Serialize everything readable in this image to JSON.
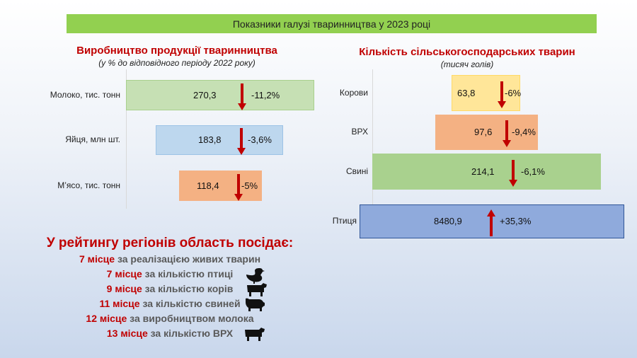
{
  "banner": "Показники галузі тваринництва у 2023 році",
  "chart_data": [
    {
      "type": "bar",
      "title": "Виробництво продукції тваринництва",
      "subtitle": "(у % до відповідного  періоду 2022 року)",
      "categories": [
        "Молоко, тис. тонн",
        "Яйця, млн шт.",
        "М’ясо, тис. тонн"
      ],
      "values": [
        270.3,
        183.8,
        118.4
      ],
      "value_labels": [
        "270,3",
        "183,8",
        "118,4"
      ],
      "changes": [
        "-11,2%",
        "-3,6%",
        "-5%"
      ],
      "colors": [
        "#c6e0b4",
        "#bdd7ee",
        "#f4b183"
      ]
    },
    {
      "type": "bar",
      "title": "Кількість сільськогосподарських тварин",
      "subtitle": "(тисяч голів)",
      "categories": [
        "Корови",
        "ВРХ",
        "Свині",
        "Птиця"
      ],
      "values": [
        63.8,
        97.6,
        214.1,
        8480.9
      ],
      "value_labels": [
        "63,8",
        "97,6",
        "214,1",
        "8480,9"
      ],
      "changes": [
        "-6%",
        "-9,4%",
        "-6,1%",
        "+35,3%"
      ],
      "colors": [
        "#ffe699",
        "#f4b183",
        "#a9d18e",
        "#8faadc"
      ]
    }
  ],
  "rating": {
    "title": "У рейтингу регіонів область посідає:",
    "items": [
      {
        "place": "7 місце",
        "text": " за реалізацією живих тварин",
        "icon": ""
      },
      {
        "place": "7 місце",
        "text": " за кількістю птиці",
        "icon": "duck-icon"
      },
      {
        "place": "9 місце",
        "text": " за кількістю корів",
        "icon": "cow-icon"
      },
      {
        "place": "11 місце",
        "text": " за кількістю свиней",
        "icon": "pig-icon"
      },
      {
        "place": "12 місце",
        "text": " за виробництвом молока",
        "icon": ""
      },
      {
        "place": "13 місце",
        "text": " за кількістю ВРХ",
        "icon": "cattle-icon"
      }
    ]
  },
  "colors": {
    "up": "#c00000",
    "down": "#c00000"
  }
}
